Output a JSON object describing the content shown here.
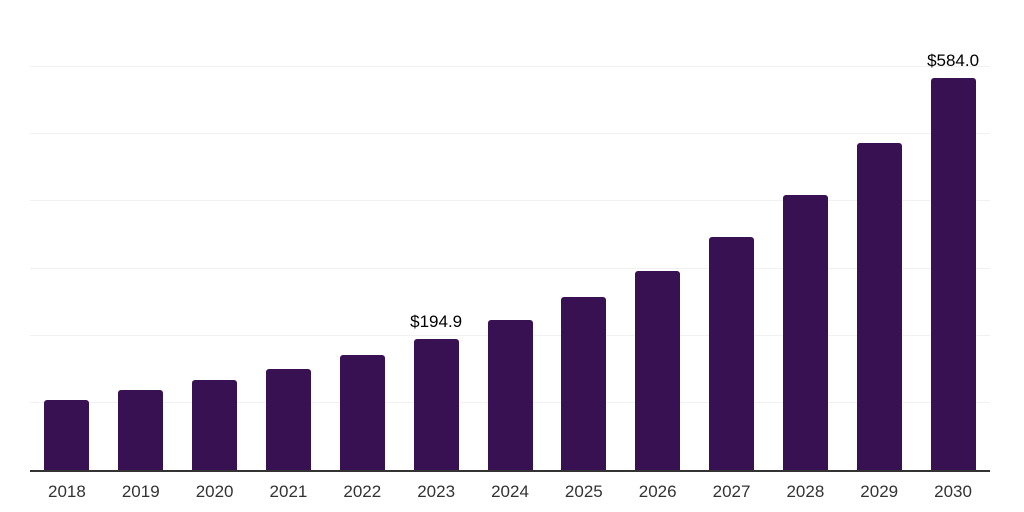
{
  "chart_data": {
    "type": "bar",
    "title": "",
    "xlabel": "",
    "ylabel": "",
    "categories": [
      "2018",
      "2019",
      "2020",
      "2021",
      "2022",
      "2023",
      "2024",
      "2025",
      "2026",
      "2027",
      "2028",
      "2029",
      "2030"
    ],
    "values": [
      105.0,
      119.0,
      133.5,
      150.0,
      171.0,
      194.9,
      223.0,
      257.0,
      296.5,
      347.0,
      410.0,
      487.5,
      584.0
    ],
    "data_labels": [
      "",
      "",
      "",
      "",
      "",
      "$194.9",
      "",
      "",
      "",
      "",
      "",
      "",
      "$584.0"
    ],
    "ylim": [
      0,
      700
    ],
    "gridline_step": 100,
    "grid": true,
    "legend": false,
    "bar_color": "#381153"
  },
  "colors": {
    "background": "#ffffff",
    "gridline": "#f1f1f1",
    "axis_line": "#333333",
    "tick_label": "#333333",
    "data_label": "#000000"
  }
}
